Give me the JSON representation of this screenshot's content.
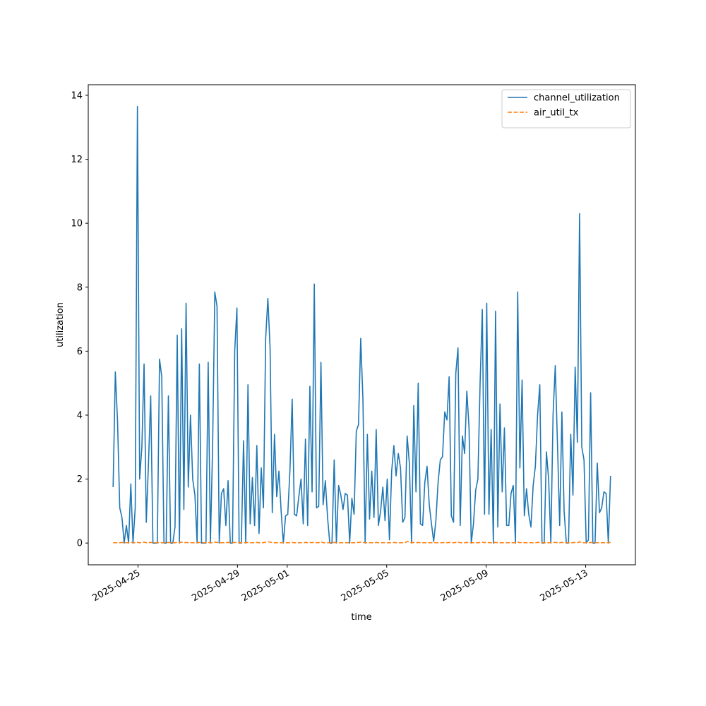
{
  "chart_data": {
    "type": "line",
    "xlabel": "time",
    "ylabel": "utilization",
    "xlim": [
      "2025-04-23",
      "2025-05-15"
    ],
    "xticks": [
      "2025-04-25",
      "2025-04-29",
      "2025-05-01",
      "2025-05-05",
      "2025-05-09",
      "2025-05-13"
    ],
    "ylim": [
      -0.68,
      14.33
    ],
    "yticks": [
      0,
      2,
      4,
      6,
      8,
      10,
      12,
      14
    ],
    "grid": false,
    "legend": "upper right",
    "series": [
      {
        "name": "channel_utilization",
        "color": "#1f77b4",
        "dash": "solid",
        "values": [
          1.75,
          5.35,
          3.8,
          1.1,
          0.8,
          0,
          0.55,
          0,
          1.85,
          0,
          1.1,
          13.65,
          2.0,
          3.0,
          5.6,
          0.65,
          2.5,
          4.6,
          0,
          0,
          0,
          5.75,
          5.2,
          0,
          0,
          4.6,
          0,
          0,
          0.5,
          6.5,
          0,
          6.7,
          1.05,
          7.5,
          1.75,
          4.0,
          2.0,
          1.5,
          0,
          5.6,
          0,
          0,
          0,
          5.65,
          0,
          3.0,
          7.85,
          7.4,
          0,
          1.55,
          1.7,
          0.55,
          1.95,
          0,
          0,
          6.0,
          7.35,
          0,
          0,
          3.2,
          0,
          4.95,
          0.6,
          2.05,
          0.55,
          3.05,
          0.3,
          2.35,
          1.1,
          6.4,
          7.65,
          6.1,
          0.95,
          3.4,
          1.45,
          2.25,
          1.0,
          0,
          0.85,
          0.9,
          2.3,
          4.5,
          0.9,
          0.85,
          1.45,
          2.0,
          0.6,
          3.25,
          0.55,
          4.9,
          1.6,
          8.1,
          1.1,
          1.15,
          5.65,
          1.2,
          1.95,
          0.8,
          0,
          0,
          2.6,
          0,
          1.8,
          1.5,
          1.05,
          1.55,
          1.5,
          0,
          1.4,
          0.9,
          3.5,
          3.7,
          6.4,
          4.5,
          0,
          3.4,
          0.75,
          2.25,
          0.8,
          3.55,
          0.55,
          1.0,
          1.75,
          0.7,
          2.0,
          0.1,
          2.25,
          3.05,
          2.1,
          2.8,
          2.35,
          0.65,
          0.8,
          3.35,
          2.5,
          0,
          4.3,
          1.6,
          5.0,
          0.6,
          0.55,
          1.9,
          2.4,
          1.2,
          0.6,
          0.05,
          0.7,
          1.9,
          2.6,
          2.7,
          4.1,
          3.85,
          5.2,
          0.85,
          0.65,
          5.3,
          6.1,
          0.55,
          3.35,
          2.8,
          4.75,
          3.6,
          0,
          0.6,
          1.65,
          2.0,
          5.0,
          7.3,
          0.9,
          7.5,
          0.9,
          3.55,
          0,
          7.25,
          0.5,
          4.35,
          1.6,
          3.6,
          0.55,
          0.55,
          1.55,
          1.8,
          0,
          7.85,
          2.35,
          5.1,
          0.85,
          1.7,
          0.9,
          0.5,
          1.8,
          2.4,
          4.0,
          4.95,
          0,
          0,
          2.85,
          2.0,
          0,
          4.0,
          5.55,
          3.1,
          0.55,
          4.1,
          1.0,
          0,
          0,
          3.4,
          1.5,
          5.5,
          3.15,
          10.3,
          3.0,
          2.6,
          0,
          0.1,
          4.7,
          0,
          0,
          2.5,
          0.95,
          1.1,
          1.6,
          1.55,
          0,
          2.1
        ]
      },
      {
        "name": "air_util_tx",
        "color": "#ff7f0e",
        "dash": "dashed",
        "values": [
          0.01,
          0.01,
          0.01,
          0.01,
          0.02,
          0.01,
          0.01,
          0.01,
          0.02,
          0.01,
          0.01,
          0.02,
          0.01,
          0.01,
          0.03,
          0.01,
          0.01,
          0.02,
          0.01,
          0.01,
          0.01,
          0.02,
          0.01,
          0.01,
          0.01,
          0.02,
          0.01,
          0.01,
          0.01,
          0.02,
          0.01,
          0.03,
          0.01,
          0.02,
          0.01,
          0.01,
          0.01,
          0.01,
          0.01,
          0.02,
          0.01,
          0.01,
          0.01,
          0.02,
          0.01,
          0.01,
          0.03,
          0.02,
          0.01,
          0.01,
          0.01,
          0.01,
          0.02,
          0.01,
          0.01,
          0.02,
          0.02,
          0.01,
          0.01,
          0.01,
          0.01,
          0.02,
          0.01,
          0.01,
          0.01,
          0.02,
          0.01,
          0.01,
          0.01,
          0.03,
          0.04,
          0.03,
          0.01,
          0.01,
          0.01,
          0.01,
          0.01,
          0.01,
          0.01,
          0.01,
          0.01,
          0.02,
          0.01,
          0.01,
          0.01,
          0.01,
          0.01,
          0.02,
          0.01,
          0.02,
          0.01,
          0.03,
          0.01,
          0.01,
          0.04,
          0.01,
          0.01,
          0.01,
          0.01,
          0.01,
          0.02,
          0.01,
          0.01,
          0.01,
          0.01,
          0.01,
          0.01,
          0.01,
          0.01,
          0.01,
          0.01,
          0.02,
          0.03,
          0.02,
          0.01,
          0.01,
          0.01,
          0.01,
          0.01,
          0.02,
          0.01,
          0.01,
          0.01,
          0.01,
          0.01,
          0.01,
          0.01,
          0.02,
          0.01,
          0.01,
          0.01,
          0.01,
          0.01,
          0.05,
          0.03,
          0.01,
          0.02,
          0.01,
          0.02,
          0.01,
          0.01,
          0.01,
          0.01,
          0.01,
          0.01,
          0.01,
          0.01,
          0.01,
          0.01,
          0.01,
          0.02,
          0.01,
          0.02,
          0.01,
          0.01,
          0.02,
          0.03,
          0.01,
          0.01,
          0.01,
          0.02,
          0.01,
          0.01,
          0.01,
          0.01,
          0.01,
          0.02,
          0.03,
          0.01,
          0.03,
          0.01,
          0.01,
          0.01,
          0.02,
          0.01,
          0.01,
          0.01,
          0.01,
          0.01,
          0.01,
          0.01,
          0.01,
          0.01,
          0.03,
          0.01,
          0.02,
          0.01,
          0.01,
          0.01,
          0.01,
          0.01,
          0.01,
          0.02,
          0.02,
          0.01,
          0.01,
          0.01,
          0.01,
          0.01,
          0.02,
          0.02,
          0.01,
          0.01,
          0.02,
          0.01,
          0.01,
          0.01,
          0.01,
          0.01,
          0.02,
          0.01,
          0.04,
          0.01,
          0.01,
          0.01,
          0.01,
          0.02,
          0.01,
          0.01,
          0.01,
          0.01,
          0.01,
          0.01,
          0.01,
          0.01,
          0.02
        ]
      }
    ]
  }
}
